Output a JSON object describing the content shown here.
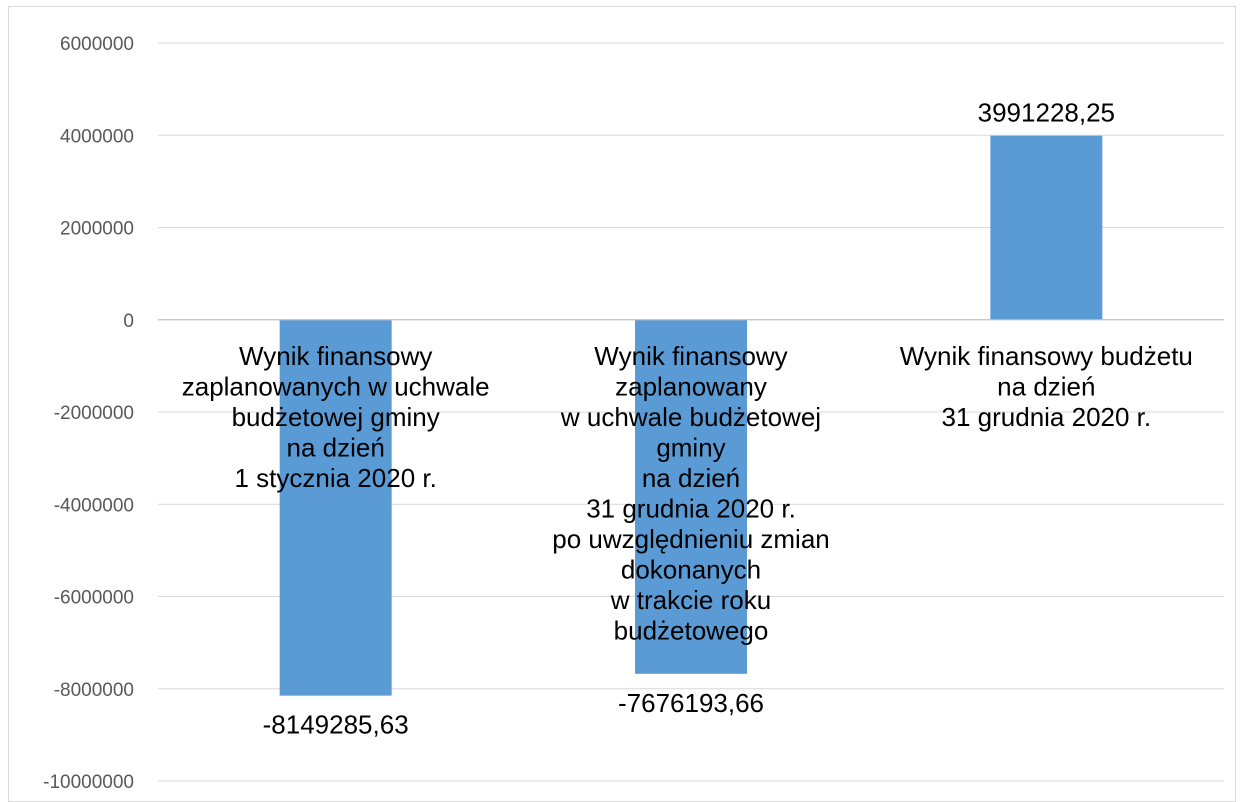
{
  "chart_data": {
    "type": "bar",
    "categories": [
      [
        "Wynik finansowy",
        "zaplanowanych w uchwale",
        "budżetowej gminy",
        "na dzień",
        "1 stycznia 2020 r."
      ],
      [
        "Wynik finansowy",
        "zaplanowany",
        "w uchwale budżetowej",
        "gminy",
        "na dzień",
        "31 grudnia 2020 r.",
        "po uwzględnieniu zmian",
        "dokonanych",
        "w trakcie roku",
        "budżetowego"
      ],
      [
        "Wynik finansowy budżetu",
        "na dzień",
        "31 grudnia 2020 r."
      ]
    ],
    "values": [
      -8149285.63,
      -7676193.66,
      3991228.25
    ],
    "data_labels": [
      "-8149285,63",
      "-7676193,66",
      "3991228,25"
    ],
    "ylim": [
      -10000000,
      6000000
    ],
    "yticks": [
      6000000,
      4000000,
      2000000,
      0,
      -2000000,
      -4000000,
      -6000000,
      -8000000,
      -10000000
    ],
    "grid": true,
    "colors": {
      "bar": "#5b9bd5",
      "grid": "#d9d9d9",
      "axis": "#bfbfbf"
    }
  }
}
